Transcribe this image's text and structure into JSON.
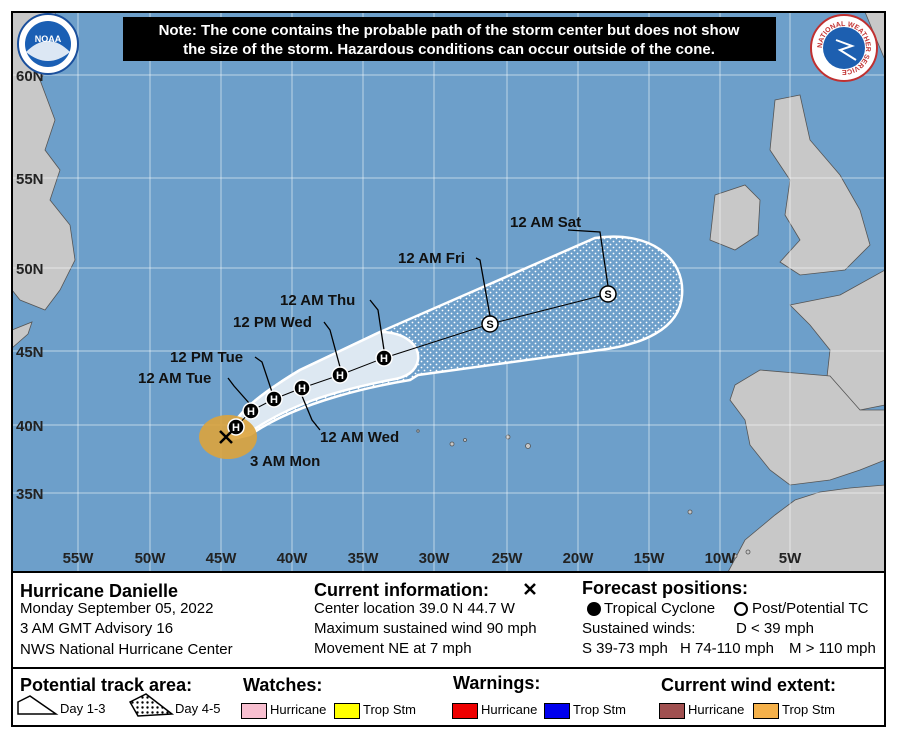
{
  "note": [
    "Note: The cone contains the probable path of the storm center but does not show",
    "the size of the storm. Hazardous conditions can occur outside of the cone."
  ],
  "logos": {
    "noaa": "NOAA",
    "nws": "NATIONAL WEATHER SERVICE"
  },
  "lat_labels": [
    "60N",
    "55N",
    "50N",
    "45N",
    "40N",
    "35N"
  ],
  "lon_labels": [
    "55W",
    "50W",
    "45W",
    "40W",
    "35W",
    "30W",
    "25W",
    "20W",
    "15W",
    "10W",
    "5W"
  ],
  "forecast_points": [
    {
      "label": "12 AM Tue",
      "symbol": "H"
    },
    {
      "label": "12 PM Tue",
      "symbol": "H"
    },
    {
      "label": "12 AM Wed",
      "symbol": "H"
    },
    {
      "label": "12 PM Wed",
      "symbol": "H"
    },
    {
      "label": "12 AM Thu",
      "symbol": "H"
    },
    {
      "label": "12 AM Fri",
      "symbol": "S"
    },
    {
      "label": "12 AM Sat",
      "symbol": "S"
    }
  ],
  "first_point_symbol": "H",
  "current_label": "3 AM Mon",
  "storm": {
    "name": "Hurricane Danielle",
    "date": "Monday September 05, 2022",
    "advisory": "3 AM GMT Advisory 16",
    "center": "NWS National Hurricane Center"
  },
  "current_info": {
    "title": "Current information:",
    "lines": [
      "Center location 39.0 N 44.7 W",
      "Maximum sustained wind 90 mph",
      "Movement NE at 7 mph"
    ]
  },
  "forecast_positions": {
    "title": "Forecast positions:",
    "tropical": "Tropical Cyclone",
    "post": "Post/Potential TC",
    "sustained": "Sustained winds:",
    "d": "D < 39 mph",
    "s": "S 39-73 mph",
    "h": "H 74-110 mph",
    "m": "M > 110 mph"
  },
  "legend": {
    "track_title": "Potential track area:",
    "day13": "Day 1-3",
    "day45": "Day 4-5",
    "watches_title": "Watches:",
    "watch_hurricane": "Hurricane",
    "watch_ts": "Trop Stm",
    "warnings_title": "Warnings:",
    "warn_hurricane": "Hurricane",
    "warn_ts": "Trop Stm",
    "wind_title": "Current wind extent:",
    "wind_hurricane": "Hurricane",
    "wind_ts": "Trop Stm"
  }
}
